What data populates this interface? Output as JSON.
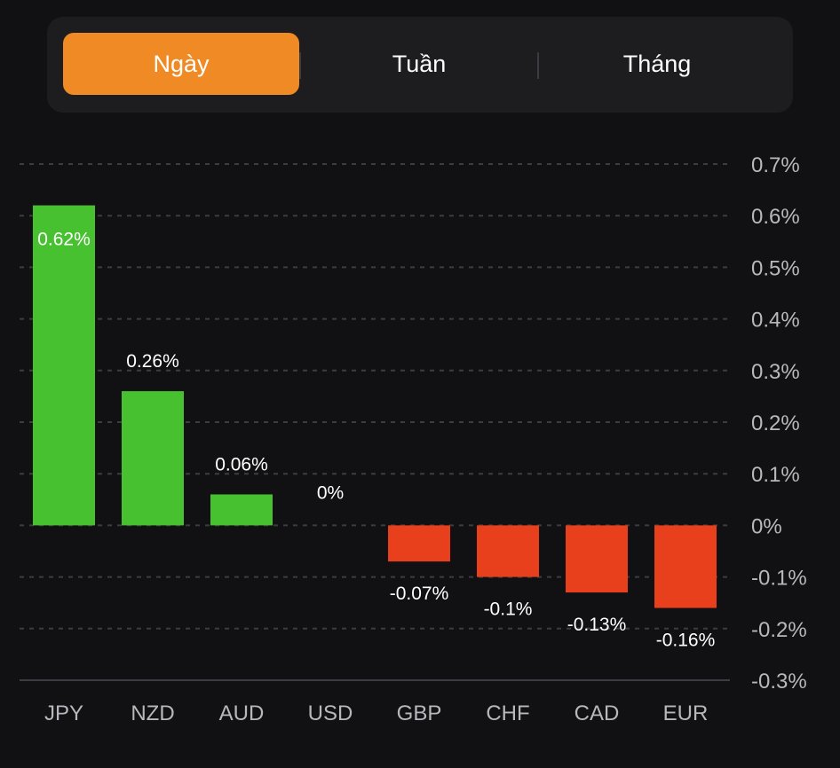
{
  "tabs": {
    "items": [
      "Ngày",
      "Tuần",
      "Tháng"
    ],
    "active": "Ngày",
    "active_color": "#f08a24"
  },
  "chart_data": {
    "type": "bar",
    "categories": [
      "JPY",
      "NZD",
      "AUD",
      "USD",
      "GBP",
      "CHF",
      "CAD",
      "EUR"
    ],
    "values": [
      0.62,
      0.26,
      0.06,
      0,
      -0.07,
      -0.1,
      -0.13,
      -0.16
    ],
    "value_labels": [
      "0.62%",
      "0.26%",
      "0.06%",
      "0%",
      "-0.07%",
      "-0.1%",
      "-0.13%",
      "-0.16%"
    ],
    "ylim": [
      -0.3,
      0.7
    ],
    "y_ticks": [
      0.7,
      0.6,
      0.5,
      0.4,
      0.3,
      0.2,
      0.1,
      0,
      -0.1,
      -0.2,
      -0.3
    ],
    "y_tick_labels": [
      "0.7%",
      "0.6%",
      "0.5%",
      "0.4%",
      "0.3%",
      "0.2%",
      "0.1%",
      "0%",
      "-0.1%",
      "-0.2%",
      "-0.3%"
    ],
    "positive_color": "#47c12f",
    "negative_color": "#e8401c",
    "grid": true,
    "axis_position": "right"
  }
}
